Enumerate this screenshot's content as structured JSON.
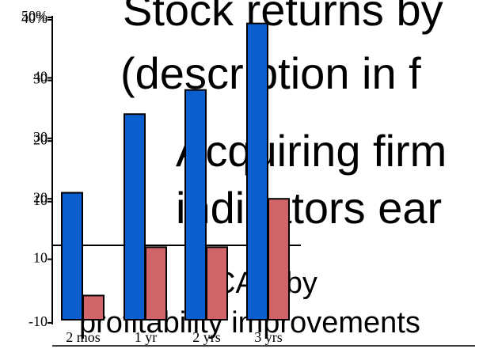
{
  "chart_data": {
    "type": "bar",
    "texts": [
      "Stock returns by",
      "(description in f",
      "Acquiring firm",
      "indicators ear",
      "CAR by",
      "profitability improvements"
    ],
    "categories": [
      "2 mos",
      "1 yr",
      "2 yrs",
      "3 yrs"
    ],
    "series": [
      {
        "color": "#0a5fd0",
        "values": [
          21,
          34,
          38,
          49
        ]
      },
      {
        "color": "#d06468",
        "values": [
          4,
          12,
          12,
          20
        ]
      }
    ],
    "ylim": [
      0,
      50
    ],
    "yticks": [
      10,
      20,
      30,
      40,
      {
        "value": 50,
        "label": "50%"
      }
    ],
    "y2lim": [
      -10,
      40
    ],
    "y2ticks": [
      -10,
      10,
      20,
      30,
      {
        "value": 40,
        "label": "40%"
      }
    ]
  }
}
